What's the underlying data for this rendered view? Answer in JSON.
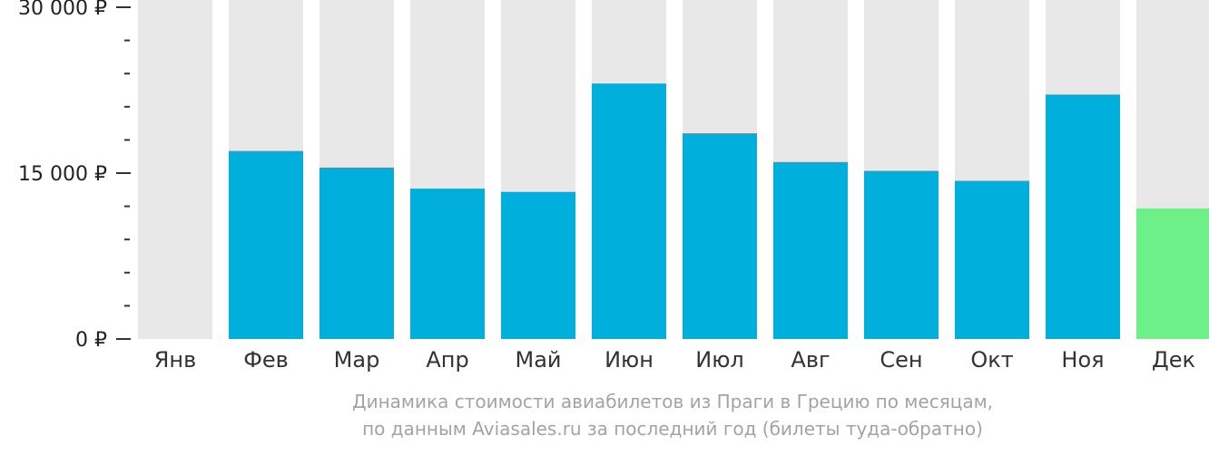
{
  "chart_data": {
    "type": "bar",
    "categories": [
      "Янв",
      "Фев",
      "Мар",
      "Апр",
      "Май",
      "Июн",
      "Июл",
      "Авг",
      "Сен",
      "Окт",
      "Ноя",
      "Дек"
    ],
    "values": [
      null,
      17000,
      15500,
      13600,
      13300,
      23100,
      18600,
      16000,
      15200,
      14300,
      22100,
      11800
    ],
    "highlight_index": 11,
    "ylim": [
      0,
      30000
    ],
    "ytick_labels": [
      "30 000 ₽",
      "15 000 ₽",
      "0 ₽"
    ],
    "ytick_values": [
      30000,
      15000,
      0
    ],
    "minor_ticks_between_majors": 4,
    "colors": {
      "bar": "#00afdb",
      "highlight": "#6ef089",
      "background_bar": "#e8e8e8",
      "axis": "#333333"
    }
  },
  "caption": {
    "line1": "Динамика стоимости авиабилетов из Праги в Грецию по месяцам,",
    "line2": "по данным Aviasales.ru за последний год (билеты туда-обратно)"
  }
}
